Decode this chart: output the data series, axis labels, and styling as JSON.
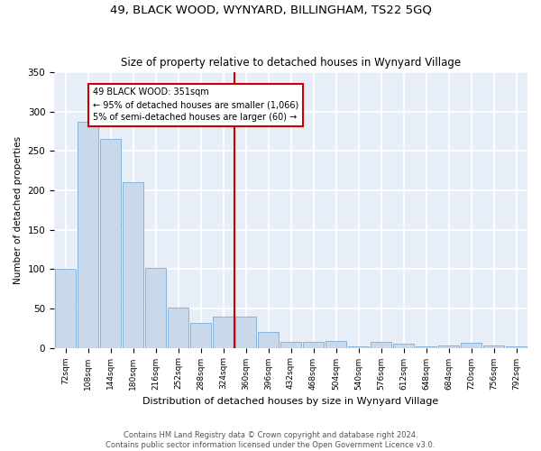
{
  "title": "49, BLACK WOOD, WYNYARD, BILLINGHAM, TS22 5GQ",
  "subtitle": "Size of property relative to detached houses in Wynyard Village",
  "xlabel": "Distribution of detached houses by size in Wynyard Village",
  "ylabel": "Number of detached properties",
  "bar_color": "#c9d9eb",
  "bar_edge_color": "#7aadd4",
  "background_color": "#e8eef8",
  "grid_color": "#ffffff",
  "annotation_box_color": "#cc0000",
  "vline_color": "#cc0000",
  "categories": [
    "72sqm",
    "108sqm",
    "144sqm",
    "180sqm",
    "216sqm",
    "252sqm",
    "288sqm",
    "324sqm",
    "360sqm",
    "396sqm",
    "432sqm",
    "468sqm",
    "504sqm",
    "540sqm",
    "576sqm",
    "612sqm",
    "648sqm",
    "684sqm",
    "720sqm",
    "756sqm",
    "792sqm"
  ],
  "values": [
    100,
    287,
    265,
    210,
    102,
    51,
    31,
    40,
    40,
    20,
    7,
    7,
    9,
    2,
    7,
    5,
    2,
    3,
    6,
    3,
    2
  ],
  "vline_x_index": 8,
  "annotation_text": "49 BLACK WOOD: 351sqm\n← 95% of detached houses are smaller (1,066)\n5% of semi-detached houses are larger (60) →",
  "ylim": [
    0,
    350
  ],
  "yticks": [
    0,
    50,
    100,
    150,
    200,
    250,
    300,
    350
  ],
  "footer1": "Contains HM Land Registry data © Crown copyright and database right 2024.",
  "footer2": "Contains public sector information licensed under the Open Government Licence v3.0."
}
